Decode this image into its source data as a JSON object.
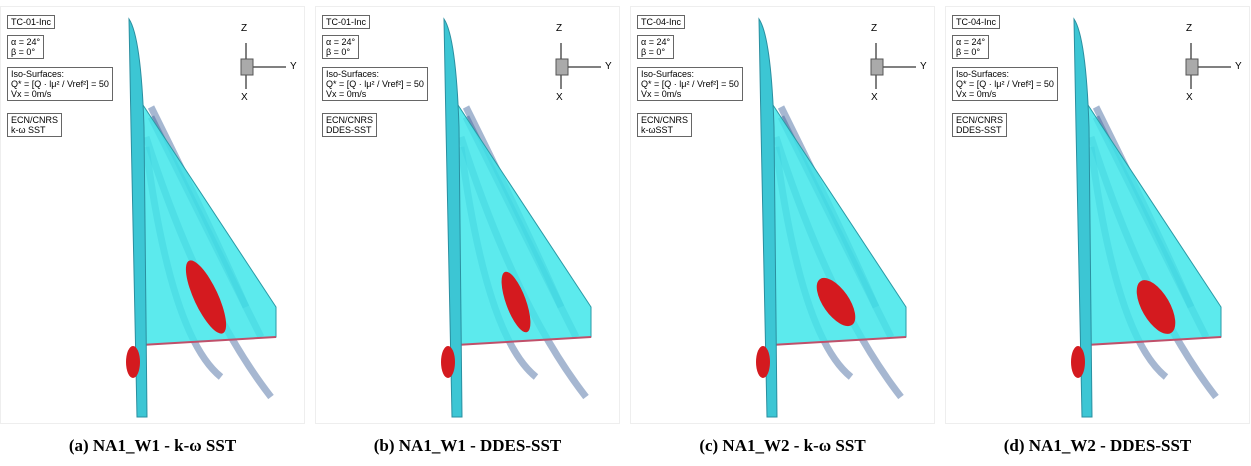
{
  "axes": {
    "z": "Z",
    "y": "Y",
    "x": "X"
  },
  "panels": [
    {
      "case": "TC-01-Inc",
      "alpha": "α = 24°",
      "beta": "β = 0°",
      "iso_title": "Iso-Surfaces:",
      "iso_formula": "Q* = [Q · lμ² / Vref²] = 50",
      "iso_vx": "Vx = 0m/s",
      "org": "ECN/CNRS",
      "method": "k-ω SST",
      "caption": "(a) NA1_W1 - k-ω SST"
    },
    {
      "case": "TC-01-Inc",
      "alpha": "α = 24°",
      "beta": "β = 0°",
      "iso_title": "Iso-Surfaces:",
      "iso_formula": "Q* = [Q · lμ² / Vref²] = 50",
      "iso_vx": "Vx = 0m/s",
      "org": "ECN/CNRS",
      "method": "DDES-SST",
      "caption": "(b) NA1_W1 - DDES-SST"
    },
    {
      "case": "TC-04-Inc",
      "alpha": "α = 24°",
      "beta": "β = 0°",
      "iso_title": "Iso-Surfaces:",
      "iso_formula": "Q* = [Q · lμ² / Vref²] = 50",
      "iso_vx": "Vx = 0m/s",
      "org": "ECN/CNRS",
      "method": "k-ωSST",
      "caption": "(c) NA1_W2 - k-ω SST"
    },
    {
      "case": "TC-04-Inc",
      "alpha": "α = 24°",
      "beta": "β = 0°",
      "iso_title": "Iso-Surfaces:",
      "iso_formula": "Q* = [Q · lμ² / Vref²] = 50",
      "iso_vx": "Vx = 0m/s",
      "org": "ECN/CNRS",
      "method": "DDES-SST",
      "caption": "(d) NA1_W2 - DDES-SST"
    }
  ]
}
